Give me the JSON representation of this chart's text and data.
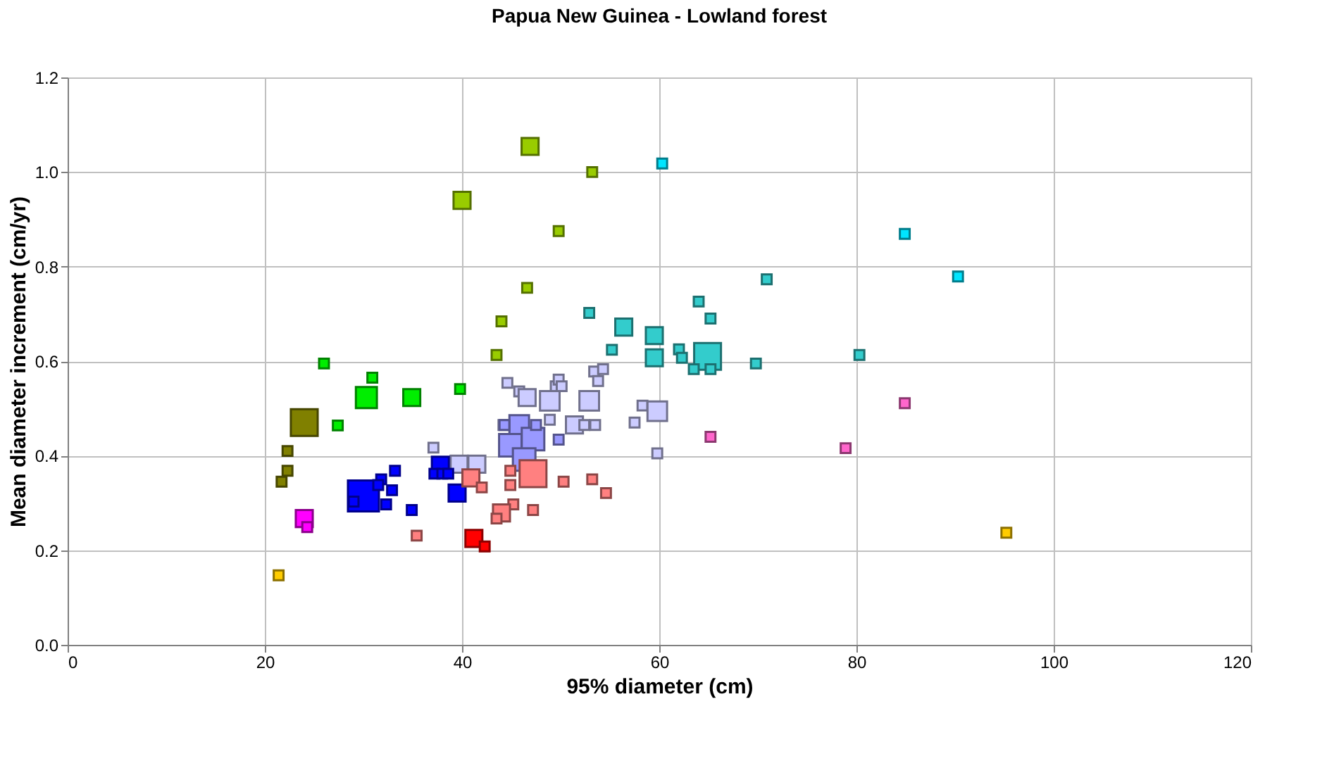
{
  "chart_data": {
    "type": "bubble",
    "title": "Papua New Guinea  - Lowland forest",
    "xlabel": "95% diameter (cm)",
    "ylabel": "Mean diameter increment (cm/yr)",
    "xlim": [
      0,
      120
    ],
    "xticks": [
      0,
      20,
      40,
      60,
      80,
      100,
      120
    ],
    "ylim": [
      0,
      1.2
    ],
    "yticks": [
      {
        "value": 0,
        "label": "0.0"
      },
      {
        "value": 0.2,
        "label": "0.2"
      },
      {
        "value": 0.4,
        "label": "0.4"
      },
      {
        "value": 0.6,
        "label": "0.6"
      },
      {
        "value": 0.8,
        "label": "0.8"
      },
      {
        "value": 1,
        "label": "1.0"
      },
      {
        "value": 1.2,
        "label": "1.2"
      }
    ],
    "grid": true,
    "legend": false,
    "marker": "square",
    "series": [
      {
        "color": "#99cc00",
        "x": [
          46.9,
          40.0,
          53.2,
          49.8,
          46.6,
          44.0,
          43.5
        ],
        "values": [
          1.054,
          0.94,
          1.0,
          0.875,
          0.755,
          0.684,
          0.613
        ],
        "sizes": [
          0.3,
          0.3,
          0.1,
          0.1,
          0.1,
          0.1,
          0.1
        ]
      },
      {
        "color": "#00ee00",
        "x": [
          26.0,
          30.9,
          30.3,
          34.9,
          27.4,
          39.8
        ],
        "values": [
          0.595,
          0.565,
          0.523,
          0.523,
          0.464,
          0.541
        ],
        "sizes": [
          0.1,
          0.1,
          0.46,
          0.3,
          0.1,
          0.1
        ]
      },
      {
        "color": "#808000",
        "x": [
          24.0,
          22.3,
          22.3,
          21.7
        ],
        "values": [
          0.47,
          0.41,
          0.368,
          0.345
        ],
        "sizes": [
          0.75,
          0.1,
          0.1,
          0.1
        ]
      },
      {
        "color": "#00e5ff",
        "x": [
          60.3,
          84.9,
          90.3
        ],
        "values": [
          1.018,
          0.869,
          0.779
        ],
        "sizes": [
          0.1,
          0.1,
          0.1
        ]
      },
      {
        "color": "#33cccc",
        "x": [
          70.9,
          64.0,
          65.2,
          59.5,
          59.5,
          62.0,
          62.3,
          64.9,
          63.5,
          65.2,
          69.8,
          80.3,
          56.4,
          52.9,
          55.2
        ],
        "values": [
          0.773,
          0.726,
          0.69,
          0.654,
          0.607,
          0.625,
          0.607,
          0.61,
          0.583,
          0.583,
          0.595,
          0.613,
          0.672,
          0.702,
          0.624
        ],
        "sizes": [
          0.1,
          0.1,
          0.1,
          0.3,
          0.3,
          0.1,
          0.1,
          0.75,
          0.1,
          0.1,
          0.1,
          0.1,
          0.3,
          0.1,
          0.1
        ]
      },
      {
        "color": "#ccccff",
        "x": [
          44.6,
          45.8,
          46.6,
          48.9,
          49.5,
          49.8,
          50.1,
          52.9,
          53.4,
          54.3,
          53.8,
          48.9,
          51.4,
          52.4,
          53.5,
          57.5,
          58.3,
          59.8,
          59.8,
          39.7,
          41.5,
          37.1,
          44.2
        ],
        "values": [
          0.554,
          0.536,
          0.523,
          0.516,
          0.547,
          0.561,
          0.547,
          0.516,
          0.578,
          0.583,
          0.558,
          0.476,
          0.465,
          0.465,
          0.465,
          0.47,
          0.506,
          0.494,
          0.405,
          0.382,
          0.382,
          0.417,
          0.465
        ],
        "sizes": [
          0.1,
          0.1,
          0.3,
          0.4,
          0.1,
          0.1,
          0.1,
          0.4,
          0.1,
          0.1,
          0.1,
          0.1,
          0.3,
          0.1,
          0.1,
          0.1,
          0.1,
          0.4,
          0.1,
          0.3,
          0.3,
          0.1,
          0.1
        ]
      },
      {
        "color": "#9999ff",
        "x": [
          45.8,
          44.9,
          47.2,
          46.3,
          44.3,
          47.5,
          49.8
        ],
        "values": [
          0.465,
          0.422,
          0.435,
          0.392,
          0.465,
          0.465,
          0.434
        ],
        "sizes": [
          0.4,
          0.53,
          0.53,
          0.53,
          0.1,
          0.1,
          0.1
        ]
      },
      {
        "color": "#0000ff",
        "x": [
          30.0,
          29.0,
          31.8,
          31.5,
          33.2,
          32.9,
          32.3,
          34.9,
          39.5,
          37.8,
          37.2,
          38.0,
          38.6
        ],
        "values": [
          0.315,
          0.303,
          0.35,
          0.338,
          0.368,
          0.327,
          0.297,
          0.285,
          0.321,
          0.38,
          0.362,
          0.362,
          0.362
        ],
        "sizes": [
          1,
          0.1,
          0.1,
          0.1,
          0.1,
          0.1,
          0.1,
          0.1,
          0.3,
          0.3,
          0.1,
          0.1,
          0.1
        ]
      },
      {
        "color": "#ff0000",
        "x": [
          41.2,
          42.3
        ],
        "values": [
          0.225,
          0.208
        ],
        "sizes": [
          0.3,
          0.1
        ]
      },
      {
        "color": "#ff00ff",
        "x": [
          24.0,
          24.3
        ],
        "values": [
          0.267,
          0.249
        ],
        "sizes": [
          0.3,
          0.1
        ]
      },
      {
        "color": "#ff8080",
        "x": [
          40.9,
          47.2,
          44.9,
          44.9,
          50.3,
          53.2,
          54.6,
          45.2,
          44.0,
          43.5,
          47.2,
          42.0,
          35.4
        ],
        "values": [
          0.353,
          0.362,
          0.368,
          0.338,
          0.345,
          0.35,
          0.321,
          0.297,
          0.279,
          0.267,
          0.285,
          0.333,
          0.231
        ],
        "sizes": [
          0.3,
          0.75,
          0.1,
          0.1,
          0.1,
          0.1,
          0.1,
          0.1,
          0.3,
          0.1,
          0.1,
          0.1,
          0.1
        ]
      },
      {
        "color": "#ff66cc",
        "x": [
          65.2,
          84.9,
          78.9
        ],
        "values": [
          0.44,
          0.511,
          0.416
        ],
        "sizes": [
          0.1,
          0.1,
          0.1
        ]
      },
      {
        "color": "#ffcc00",
        "x": [
          95.2,
          21.4
        ],
        "values": [
          0.237,
          0.147
        ],
        "sizes": [
          0.1,
          0.1
        ]
      }
    ]
  }
}
